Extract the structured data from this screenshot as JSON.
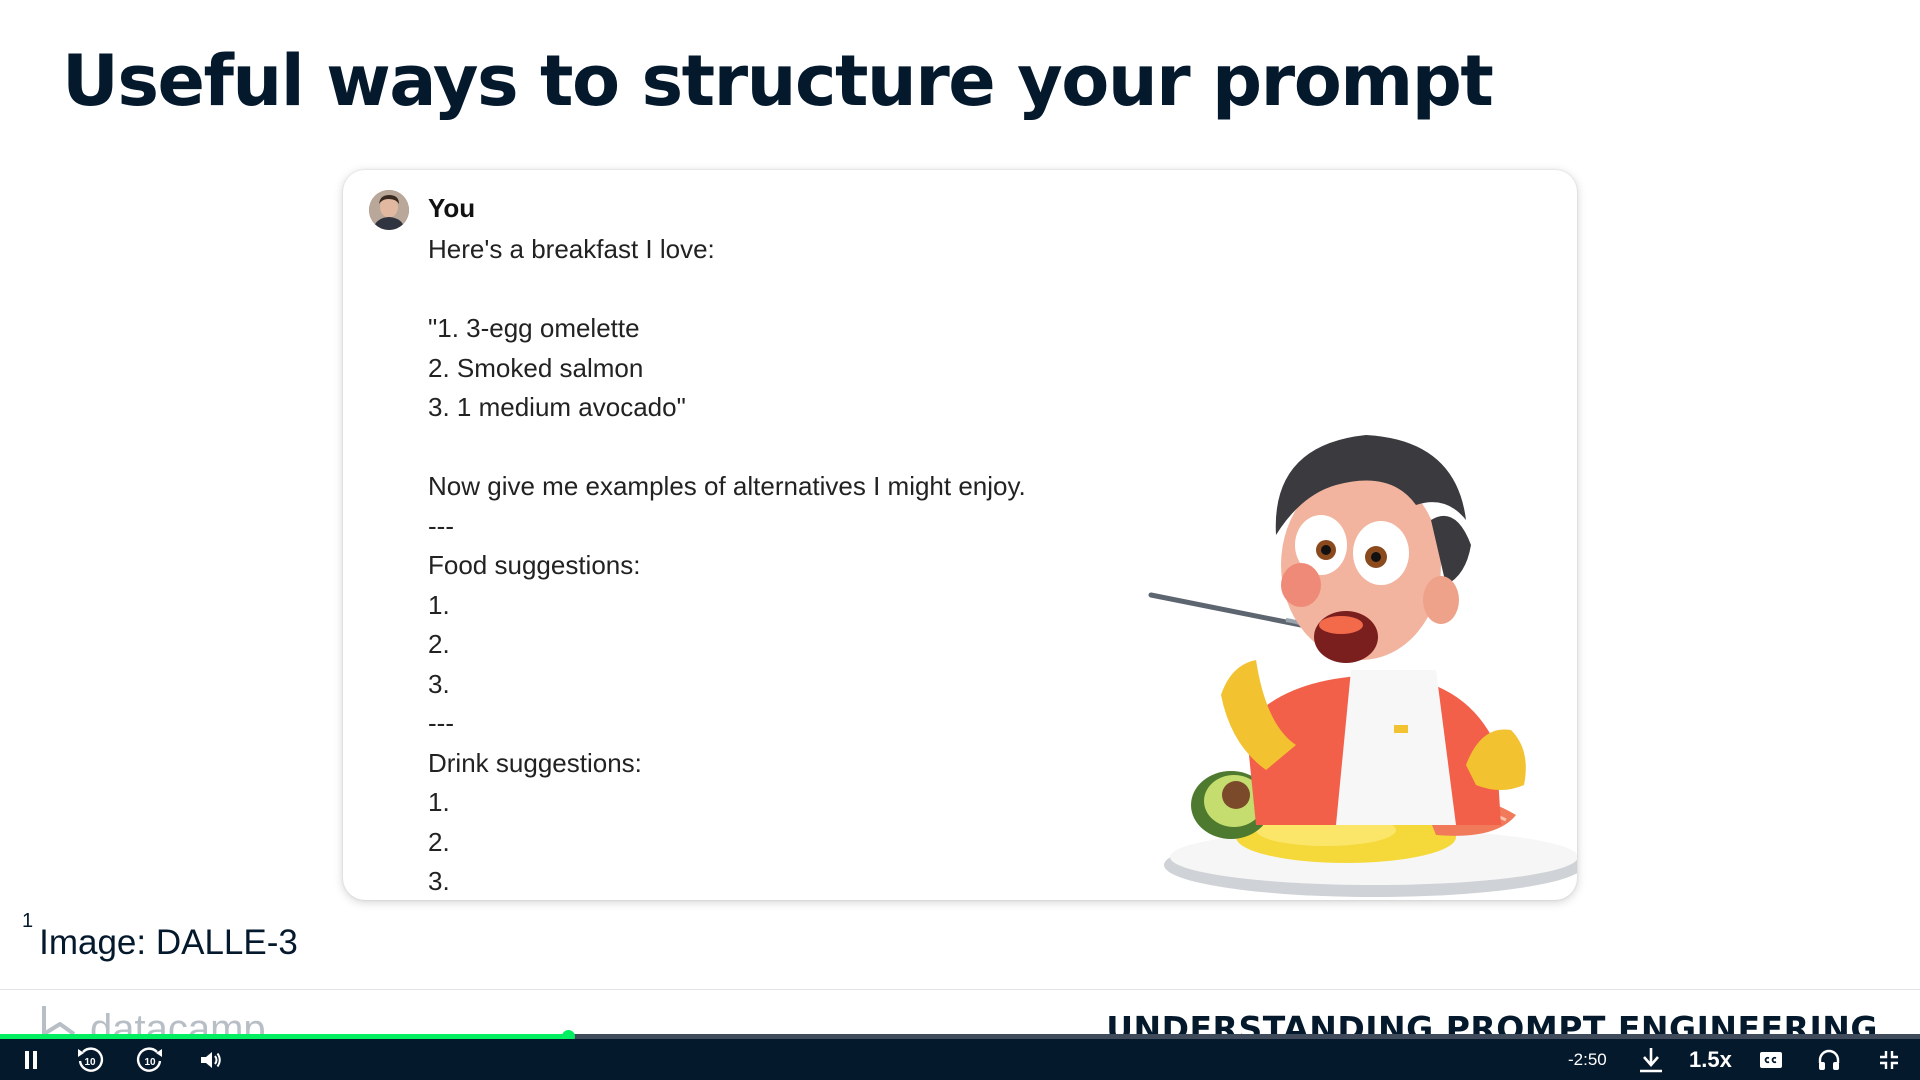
{
  "slide": {
    "title": "Useful ways to structure your prompt"
  },
  "chat": {
    "author": "You",
    "lines": [
      "Here's a breakfast I love:",
      "",
      "\"1. 3-egg omelette",
      "2. Smoked salmon",
      "3. 1 medium avocado\"",
      "",
      "Now give me examples of alternatives I might enjoy.",
      "---",
      "Food suggestions:",
      "1.",
      "2.",
      "3.",
      "---",
      "Drink suggestions:",
      "1.",
      "2.",
      "3."
    ]
  },
  "footnote": {
    "marker": "1",
    "text": "Image: DALLE-3"
  },
  "footer": {
    "logo_text": "datacamp",
    "course_title": "UNDERSTANDING PROMPT ENGINEERING"
  },
  "player": {
    "progress": 0.296,
    "time_remaining": "-2:50",
    "speed": "1.5x",
    "rewind_seconds": "10",
    "forward_seconds": "10",
    "icons": [
      "pause-icon",
      "rewind-10-icon",
      "forward-10-icon",
      "volume-icon",
      "download-icon",
      "captions-icon",
      "headphones-icon",
      "exit-fullscreen-icon"
    ]
  },
  "colors": {
    "navy": "#05192d",
    "accent_green": "#03ef62",
    "track": "#3f4a5a"
  }
}
